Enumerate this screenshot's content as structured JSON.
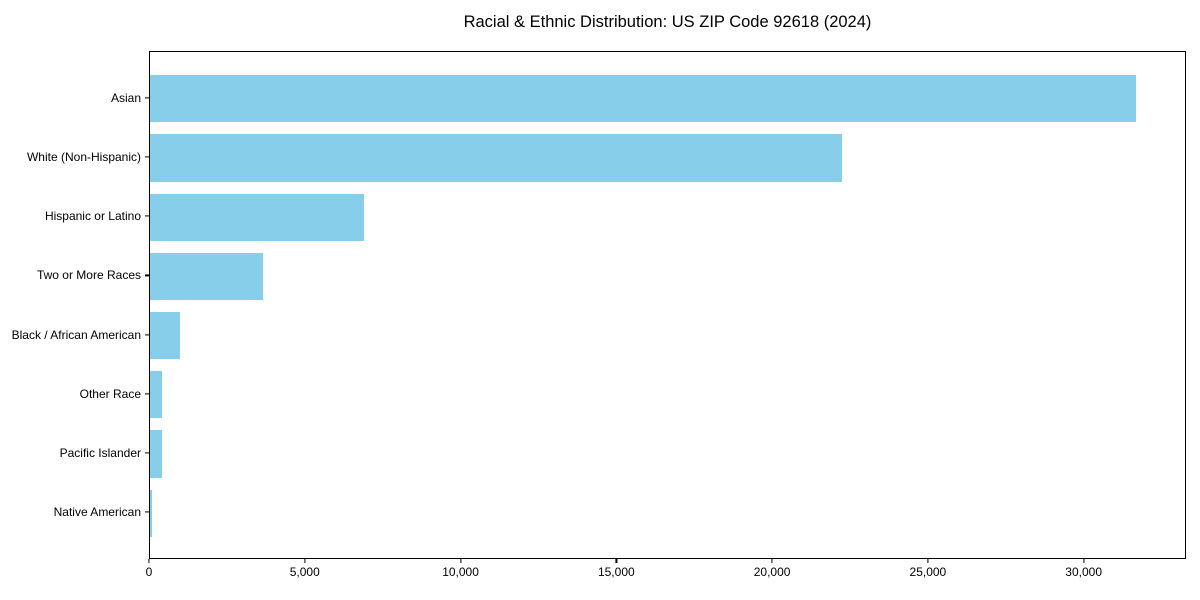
{
  "colors": {
    "bar": "#87CEEB",
    "axis": "#000000",
    "text": "#000000",
    "background": "#FFFFFF"
  },
  "chart_data": {
    "type": "bar",
    "orientation": "horizontal",
    "title": "Racial & Ethnic Distribution: US ZIP Code 92618 (2024)",
    "categories": [
      "Asian",
      "White (Non-Hispanic)",
      "Hispanic or Latino",
      "Two or More Races",
      "Black / African American",
      "Other Race",
      "Pacific Islander",
      "Native American"
    ],
    "values": [
      31700,
      22250,
      6880,
      3640,
      970,
      400,
      375,
      65
    ],
    "xlabel": "",
    "ylabel": "",
    "xlim": [
      0,
      33285
    ],
    "xticks": [
      0,
      5000,
      10000,
      15000,
      20000,
      25000,
      30000
    ],
    "xtick_labels": [
      "0",
      "5,000",
      "10,000",
      "15,000",
      "20,000",
      "25,000",
      "30,000"
    ],
    "bar_color": "#87CEEB",
    "bar_height_fraction": 0.8,
    "grid": false,
    "legend": null
  }
}
